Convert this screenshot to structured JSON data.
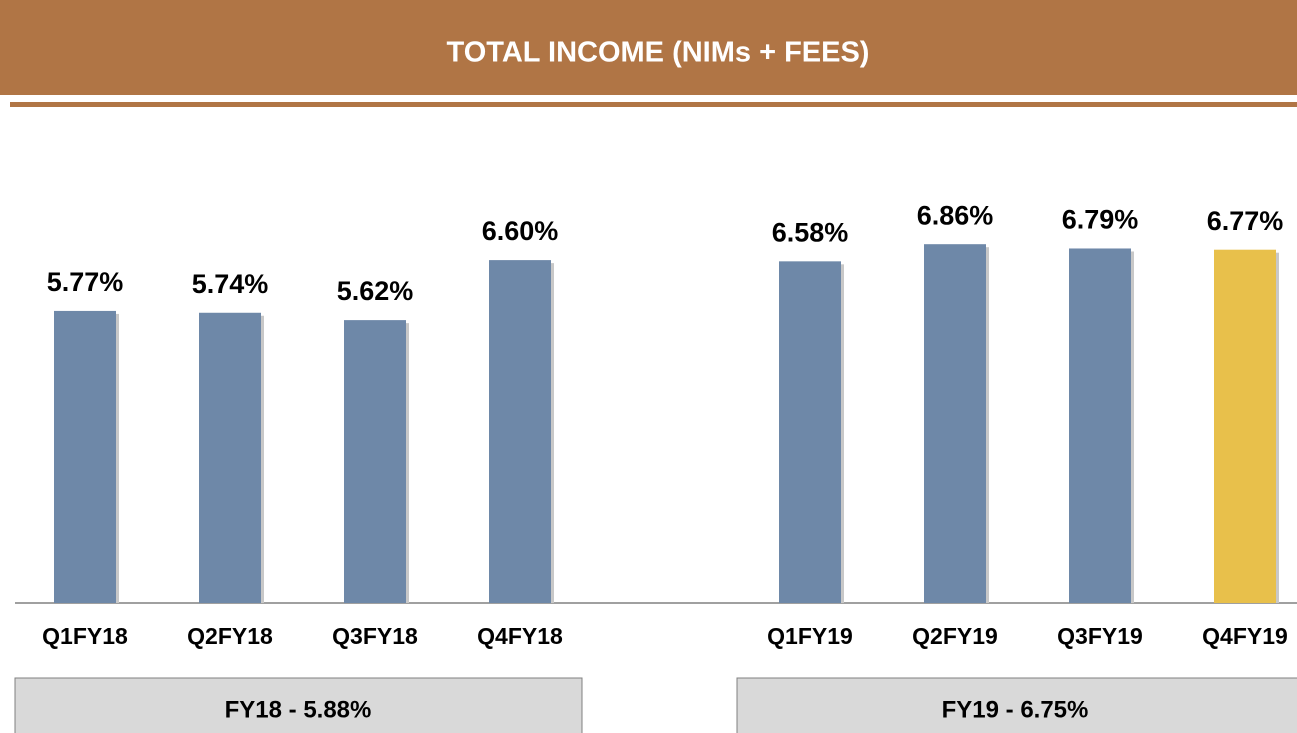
{
  "chart_data": {
    "type": "bar",
    "title": "TOTAL INCOME (NIMs + FEES)",
    "categories": [
      "Q1FY18",
      "Q2FY18",
      "Q3FY18",
      "Q4FY18",
      "Q1FY19",
      "Q2FY19",
      "Q3FY19",
      "Q4FY19"
    ],
    "values": [
      5.77,
      5.74,
      5.62,
      6.6,
      6.58,
      6.86,
      6.79,
      6.77
    ],
    "value_labels": [
      "5.77%",
      "5.74%",
      "5.62%",
      "6.60%",
      "6.58%",
      "6.86%",
      "6.79%",
      "6.77%"
    ],
    "colors": [
      "#6e88a8",
      "#6e88a8",
      "#6e88a8",
      "#6e88a8",
      "#6e88a8",
      "#6e88a8",
      "#6e88a8",
      "#e8c04b"
    ],
    "ylim": [
      1,
      7.5
    ],
    "annotations": [
      "FY18 - 5.88%",
      "FY19 - 6.75%"
    ]
  }
}
